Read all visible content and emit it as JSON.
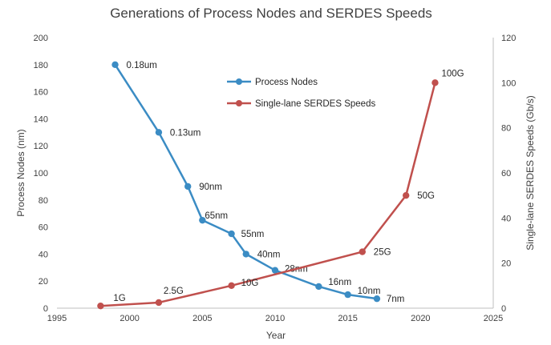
{
  "chart_data": {
    "type": "line",
    "title": "Generations of Process Nodes and SERDES Speeds",
    "xlabel": "Year",
    "ylabel_left": "Process Nodes (nm)",
    "ylabel_right": "Single-lane SERDES Speeds (Gb/s)",
    "xlim": [
      1995,
      2025
    ],
    "ylim_left": [
      0,
      200
    ],
    "ylim_right": [
      0,
      120
    ],
    "x_ticks": [
      "1995",
      "2000",
      "2005",
      "2010",
      "2015",
      "2020",
      "2025"
    ],
    "y_left_ticks": [
      "0",
      "20",
      "40",
      "60",
      "80",
      "100",
      "120",
      "140",
      "160",
      "180",
      "200"
    ],
    "y_right_ticks": [
      "0",
      "20",
      "40",
      "60",
      "80",
      "100",
      "120"
    ],
    "legend_position": "top-center",
    "series": [
      {
        "name": "Process Nodes",
        "axis": "left",
        "color": "#3B8CC4",
        "x": [
          1999,
          2002,
          2004,
          2005,
          2007,
          2008,
          2010,
          2013,
          2015,
          2017
        ],
        "values": [
          180,
          130,
          90,
          65,
          55,
          40,
          28,
          16,
          10,
          7
        ],
        "labels": [
          "0.18um",
          "0.13um",
          "90nm",
          "65nm",
          "55nm",
          "40nm",
          "28nm",
          "16nm",
          "10nm",
          "7nm"
        ]
      },
      {
        "name": "Single-lane SERDES Speeds",
        "axis": "right",
        "color": "#C0504D",
        "x": [
          1998,
          2002,
          2007,
          2016,
          2019,
          2021
        ],
        "values": [
          1,
          2.5,
          10,
          25,
          50,
          100
        ],
        "labels": [
          "1G",
          "2.5G",
          "10G",
          "25G",
          "50G",
          "100G"
        ]
      }
    ]
  }
}
